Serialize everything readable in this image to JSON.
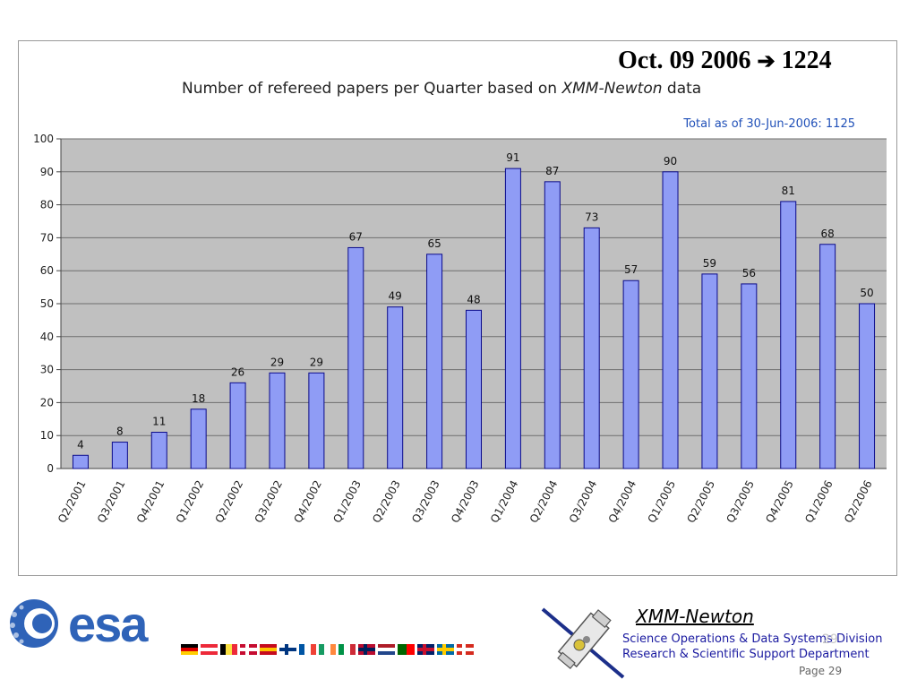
{
  "headline": {
    "text": "Oct. 09 2006",
    "arrow": "➔",
    "count": "1224"
  },
  "chart_data": {
    "type": "bar",
    "title_prefix": "Number of refereed papers per Quarter based on ",
    "title_emphasis": "XMM-Newton",
    "title_suffix": " data",
    "annotation": "Total as of 30-Jun-2006: 1125",
    "categories": [
      "Q2/2001",
      "Q3/2001",
      "Q4/2001",
      "Q1/2002",
      "Q2/2002",
      "Q3/2002",
      "Q4/2002",
      "Q1/2003",
      "Q2/2003",
      "Q3/2003",
      "Q4/2003",
      "Q1/2004",
      "Q2/2004",
      "Q3/2004",
      "Q4/2004",
      "Q1/2005",
      "Q2/2005",
      "Q3/2005",
      "Q4/2005",
      "Q1/2006",
      "Q2/2006"
    ],
    "values": [
      4,
      8,
      11,
      18,
      26,
      29,
      29,
      67,
      49,
      65,
      48,
      91,
      87,
      73,
      57,
      90,
      59,
      56,
      81,
      68,
      50
    ],
    "ylim": [
      0,
      100
    ],
    "yticks": [
      0,
      10,
      20,
      30,
      40,
      50,
      60,
      70,
      80,
      90,
      100
    ],
    "grid": true,
    "legend": "none",
    "colors": {
      "bar": "#8f9cf5",
      "bar_edge": "#0a0a8a",
      "plot_bg": "#c0c0c0",
      "grid": "#6e6e6e",
      "annotation": "#2050b8"
    }
  },
  "footer": {
    "logo_text": "esa",
    "flags": [
      {
        "name": "germany",
        "stripes": [
          "#000000",
          "#dd0000",
          "#ffce00"
        ],
        "dir": "h"
      },
      {
        "name": "austria",
        "stripes": [
          "#ed2939",
          "#ffffff",
          "#ed2939"
        ],
        "dir": "h"
      },
      {
        "name": "belgium",
        "stripes": [
          "#000000",
          "#fae042",
          "#ed2939"
        ],
        "dir": "v"
      },
      {
        "name": "denmark",
        "stripes": [
          "#c60c30"
        ],
        "cross": "#ffffff"
      },
      {
        "name": "spain",
        "stripes": [
          "#c60b1e",
          "#ffc400",
          "#c60b1e"
        ],
        "dir": "h"
      },
      {
        "name": "finland",
        "stripes": [
          "#ffffff"
        ],
        "cross": "#003580"
      },
      {
        "name": "france",
        "stripes": [
          "#0055a4",
          "#ffffff",
          "#ef4135"
        ],
        "dir": "v"
      },
      {
        "name": "ireland",
        "stripes": [
          "#169b62",
          "#ffffff",
          "#ff883e"
        ],
        "dir": "v"
      },
      {
        "name": "italy",
        "stripes": [
          "#009246",
          "#ffffff",
          "#ce2b37"
        ],
        "dir": "v"
      },
      {
        "name": "norway",
        "stripes": [
          "#ba0c2f"
        ],
        "cross": "#00205b"
      },
      {
        "name": "netherlands",
        "stripes": [
          "#ae1c28",
          "#ffffff",
          "#21468b"
        ],
        "dir": "h"
      },
      {
        "name": "portugal",
        "stripes": [
          "#006600",
          "#ff0000"
        ],
        "dir": "v"
      },
      {
        "name": "uk",
        "stripes": [
          "#012169"
        ],
        "cross": "#c8102e"
      },
      {
        "name": "sweden",
        "stripes": [
          "#006aa7"
        ],
        "cross": "#fecc00"
      },
      {
        "name": "switzerland",
        "stripes": [
          "#d52b1e"
        ],
        "cross": "#ffffff"
      }
    ],
    "mission": "XMM-Newton",
    "division_line1": "Science Operations & Data Systems Division",
    "division_line2": "Research & Scientific Support Department",
    "page_label": "Page 29",
    "page_mark": "29"
  }
}
